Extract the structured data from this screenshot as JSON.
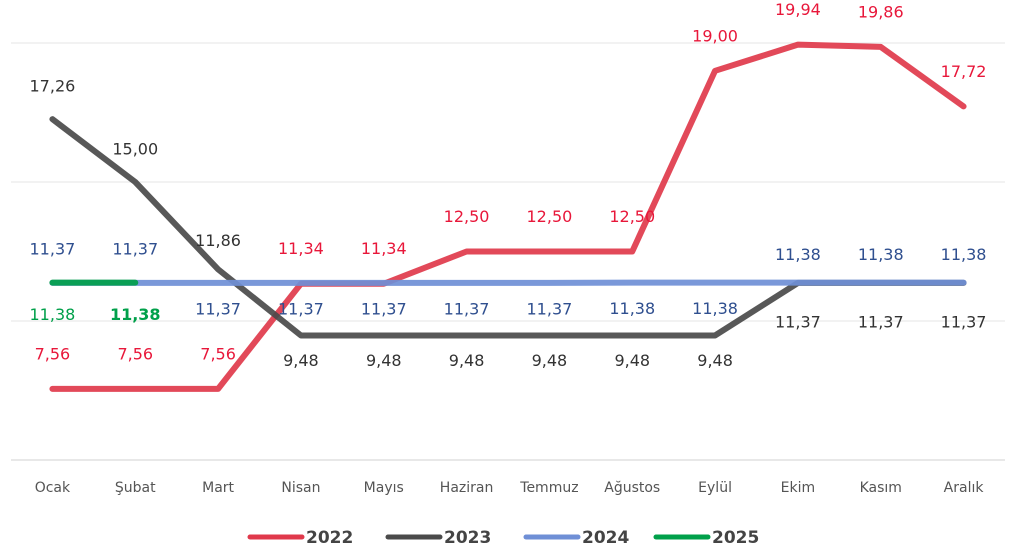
{
  "chart_data": {
    "type": "line",
    "categories": [
      "Ocak",
      "Şubat",
      "Mart",
      "Nisan",
      "Mayıs",
      "Haziran",
      "Temmuz",
      "Ağustos",
      "Eylül",
      "Ekim",
      "Kasım",
      "Aralık"
    ],
    "series": [
      {
        "name": "2022",
        "color": "#e0394b",
        "label_color": "#e8173a",
        "values": [
          7.56,
          7.56,
          7.56,
          11.34,
          11.34,
          12.5,
          12.5,
          12.5,
          19.0,
          19.94,
          19.86,
          17.72
        ],
        "value_labels": [
          "7,56",
          "7,56",
          "7,56",
          "11,34",
          "11,34",
          "12,50",
          "12,50",
          "12,50",
          "19,00",
          "19,94",
          "19,86",
          "17,72"
        ]
      },
      {
        "name": "2023",
        "color": "#4a4a4a",
        "label_color": "#333333",
        "values": [
          17.26,
          15.0,
          11.86,
          9.48,
          9.48,
          9.48,
          9.48,
          9.48,
          9.48,
          11.37,
          11.37,
          11.37
        ],
        "value_labels": [
          "17,26",
          "15,00",
          "11,86",
          "9,48",
          "9,48",
          "9,48",
          "9,48",
          "9,48",
          "9,48",
          "11,37",
          "11,37",
          "11,37"
        ]
      },
      {
        "name": "2024",
        "color": "#6f8fd6",
        "label_color": "#2f4f8f",
        "values": [
          11.37,
          11.37,
          11.37,
          11.37,
          11.37,
          11.37,
          11.37,
          11.38,
          11.38,
          11.38,
          11.38,
          11.38
        ],
        "value_labels": [
          "11,37",
          "11,37",
          "11,37",
          "11,37",
          "11,37",
          "11,37",
          "11,37",
          "11,38",
          "11,38",
          "11,38",
          "11,38",
          "11,38"
        ]
      },
      {
        "name": "2025",
        "color": "#00a04a",
        "label_color": "#00a04a",
        "values": [
          11.38,
          11.38,
          null,
          null,
          null,
          null,
          null,
          null,
          null,
          null,
          null,
          null
        ],
        "value_labels": [
          "11,38",
          "11,38",
          null,
          null,
          null,
          null,
          null,
          null,
          null,
          null,
          null,
          null
        ]
      }
    ],
    "ylim": [
      5,
      20
    ],
    "yticks": [
      5,
      10,
      15,
      20
    ],
    "grid": true,
    "legend": "bottom"
  }
}
